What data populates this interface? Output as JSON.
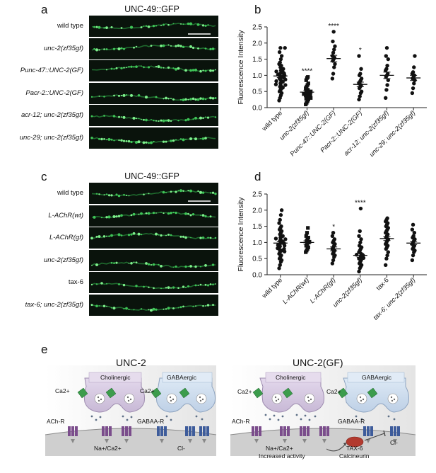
{
  "panels": {
    "a": {
      "letter": "a",
      "title": "UNC-49::GFP",
      "rows": [
        "wild type",
        "unc-2(zf35gf)",
        "Punc-47::UNC-2(GF)",
        "Pacr-2::UNC-2(GF)",
        "acr-12; unc-2(zf35gf)",
        "unc-29; unc-2(zf35gf)"
      ]
    },
    "c": {
      "letter": "c",
      "title": "UNC-49::GFP",
      "rows": [
        "wild type",
        "L-AChR(wt)",
        "L-AChR(gf)",
        "unc-2(zf35gf)",
        "tax-6",
        "tax-6; unc-2(zf35gf)"
      ]
    },
    "b": {
      "letter": "b"
    },
    "d": {
      "letter": "d"
    },
    "e": {
      "letter": "e",
      "left": {
        "title": "UNC-2",
        "cholinergic": "Cholinergic",
        "gabaergic": "GABAergic",
        "ca": "Ca2+",
        "achr": "ACh-R",
        "gabar": "GABAA-R",
        "na": "Na+/Ca2+",
        "cl": "Cl-"
      },
      "right": {
        "title": "UNC-2(GF)",
        "cholinergic": "Cholinergic",
        "gabaergic": "GABAergic",
        "ca": "Ca2+",
        "achr": "ACh-R",
        "gabar": "GABAA-R",
        "na": "Na+/Ca2+",
        "increased": "Increased activity",
        "tax6": "TAX-6",
        "calcineurin": "Calcineurin",
        "cl": "Cl-"
      }
    }
  },
  "chart_data": [
    {
      "type": "scatter",
      "panel": "b",
      "ylabel": "Fluorescence Intensity",
      "ylim": [
        0,
        2.5
      ],
      "yticks": [
        "0.0",
        "0.5",
        "1.0",
        "1.5",
        "2.0",
        "2.5"
      ],
      "categories": [
        "wild type",
        "unc-2(zf35gf)",
        "Punc-47::UNC-2(GF)",
        "Pacr-2::UNC-2(GF)",
        "acr-12; unc-2(zf35gf)",
        "unc-29; unc-2(zf35gf)"
      ],
      "markers": [
        "circle",
        "square",
        "circle",
        "circle",
        "circle",
        "circle"
      ],
      "means": [
        0.98,
        0.48,
        1.52,
        0.72,
        1.0,
        0.92
      ],
      "sem": [
        0.05,
        0.06,
        0.1,
        0.07,
        0.1,
        0.08
      ],
      "significance": [
        "",
        "****",
        "****",
        "*",
        "",
        ""
      ],
      "points": [
        [
          0.22,
          0.3,
          0.38,
          0.45,
          0.5,
          0.55,
          0.58,
          0.62,
          0.65,
          0.68,
          0.7,
          0.72,
          0.75,
          0.78,
          0.8,
          0.82,
          0.85,
          0.87,
          0.9,
          0.92,
          0.94,
          0.96,
          0.98,
          1.0,
          1.02,
          1.04,
          1.06,
          1.08,
          1.1,
          1.12,
          1.15,
          1.18,
          1.2,
          1.25,
          1.3,
          1.35,
          1.4,
          1.5,
          1.6,
          1.72,
          1.85,
          1.85
        ],
        [
          0.1,
          0.15,
          0.2,
          0.25,
          0.28,
          0.3,
          0.35,
          0.38,
          0.4,
          0.42,
          0.45,
          0.48,
          0.5,
          0.55,
          0.6,
          0.65,
          0.7,
          0.75,
          0.85,
          0.92,
          0.95
        ],
        [
          0.9,
          1.05,
          1.25,
          1.35,
          1.45,
          1.5,
          1.55,
          1.6,
          1.7,
          1.8,
          1.9,
          2.05,
          2.35
        ],
        [
          0.25,
          0.35,
          0.45,
          0.5,
          0.6,
          0.65,
          0.7,
          0.75,
          0.8,
          0.85,
          0.9,
          1.0,
          1.05,
          1.2,
          1.6
        ],
        [
          0.3,
          0.55,
          0.7,
          0.85,
          0.95,
          1.0,
          1.05,
          1.15,
          1.2,
          1.3,
          1.5,
          1.6,
          1.85
        ],
        [
          0.45,
          0.6,
          0.75,
          0.85,
          0.9,
          0.95,
          1.0,
          1.05,
          1.1,
          1.25,
          1.6
        ]
      ]
    },
    {
      "type": "scatter",
      "panel": "d",
      "ylabel": "Fluorescence Intensity",
      "ylim": [
        0,
        2.5
      ],
      "yticks": [
        "0.0",
        "0.5",
        "1.0",
        "1.5",
        "2.0",
        "2.5"
      ],
      "categories": [
        "wild type",
        "L-AChR(wt)",
        "L-AChR(gf)",
        "unc-2(zf35gf)",
        "tax-6",
        "tax-6; unc-2(zf35gf)"
      ],
      "markers": [
        "circle",
        "square",
        "circle",
        "circle",
        "circle",
        "circle"
      ],
      "means": [
        0.98,
        1.0,
        0.8,
        0.6,
        1.12,
        0.98
      ],
      "sem": [
        0.04,
        0.05,
        0.06,
        0.06,
        0.06,
        0.05
      ],
      "significance": [
        "",
        "",
        "*",
        "****",
        "",
        ""
      ],
      "points": [
        [
          0.2,
          0.3,
          0.4,
          0.45,
          0.5,
          0.55,
          0.6,
          0.65,
          0.7,
          0.72,
          0.75,
          0.78,
          0.8,
          0.82,
          0.85,
          0.88,
          0.9,
          0.92,
          0.95,
          0.97,
          1.0,
          1.02,
          1.05,
          1.08,
          1.1,
          1.12,
          1.15,
          1.18,
          1.2,
          1.25,
          1.3,
          1.35,
          1.4,
          1.45,
          1.5,
          1.6,
          1.7,
          1.85,
          2.0
        ],
        [
          0.7,
          0.75,
          0.8,
          0.85,
          0.9,
          0.95,
          1.0,
          1.02,
          1.05,
          1.1,
          1.15,
          1.2,
          1.3,
          1.45
        ],
        [
          0.35,
          0.45,
          0.55,
          0.6,
          0.65,
          0.7,
          0.75,
          0.8,
          0.85,
          0.9,
          0.95,
          1.0,
          1.05,
          1.1,
          1.2,
          1.3
        ],
        [
          0.1,
          0.2,
          0.25,
          0.3,
          0.35,
          0.4,
          0.45,
          0.5,
          0.52,
          0.55,
          0.58,
          0.6,
          0.62,
          0.65,
          0.7,
          0.75,
          0.8,
          0.85,
          0.9,
          1.0,
          1.1,
          1.2,
          1.35,
          2.05
        ],
        [
          0.3,
          0.5,
          0.6,
          0.7,
          0.8,
          0.85,
          0.9,
          0.95,
          1.0,
          1.05,
          1.1,
          1.15,
          1.2,
          1.25,
          1.3,
          1.35,
          1.4,
          1.45,
          1.5,
          1.55,
          1.6,
          1.65,
          1.7,
          1.75
        ],
        [
          0.45,
          0.6,
          0.7,
          0.75,
          0.8,
          0.85,
          0.9,
          0.95,
          1.0,
          1.05,
          1.1,
          1.15,
          1.2,
          1.3,
          1.4,
          1.55
        ]
      ]
    }
  ]
}
